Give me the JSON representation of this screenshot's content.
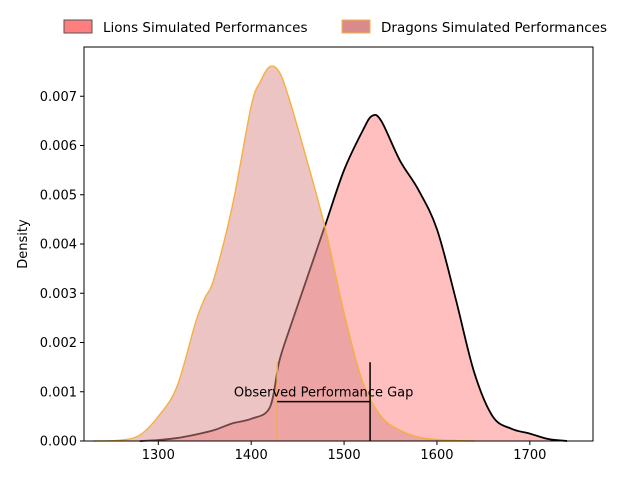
{
  "chart_data": {
    "type": "area",
    "title": "",
    "xlabel": "",
    "ylabel": "Density",
    "xlim": [
      1220,
      1768
    ],
    "ylim": [
      0,
      0.008
    ],
    "xticks": [
      1300,
      1400,
      1500,
      1600,
      1700
    ],
    "yticks": [
      0.0,
      0.001,
      0.002,
      0.003,
      0.004,
      0.005,
      0.006,
      0.007
    ],
    "grid": false,
    "legend_placement": "top-center-outside",
    "series": [
      {
        "name": "Lions Simulated Performances",
        "fill_color": "#ff7f7f",
        "line_color": "#000000",
        "x": [
          1280,
          1300,
          1320,
          1340,
          1360,
          1380,
          1400,
          1420,
          1430,
          1440,
          1460,
          1480,
          1500,
          1520,
          1530,
          1540,
          1560,
          1580,
          1600,
          1620,
          1640,
          1660,
          1680,
          1700,
          1720,
          1740
        ],
        "y": [
          0.0,
          2e-05,
          6e-05,
          0.00013,
          0.00022,
          0.00036,
          0.00045,
          0.00068,
          0.0016,
          0.0022,
          0.0033,
          0.0044,
          0.0055,
          0.0063,
          0.0066,
          0.0065,
          0.0057,
          0.0051,
          0.0043,
          0.0029,
          0.0014,
          0.0005,
          0.00025,
          0.00015,
          4e-05,
          0.0
        ]
      },
      {
        "name": "Dragons Simulated Performances",
        "fill_color": "#d98a8a",
        "line_color": "#f5b041",
        "x": [
          1230,
          1260,
          1280,
          1300,
          1320,
          1340,
          1350,
          1360,
          1380,
          1400,
          1410,
          1420,
          1430,
          1440,
          1460,
          1480,
          1500,
          1520,
          1540,
          1560,
          1580,
          1600,
          1620,
          1640
        ],
        "y": [
          0.0,
          2e-05,
          0.00012,
          0.0005,
          0.0011,
          0.0024,
          0.0029,
          0.0033,
          0.0048,
          0.0068,
          0.0073,
          0.0076,
          0.0075,
          0.007,
          0.0057,
          0.0043,
          0.0026,
          0.0012,
          0.0005,
          0.00022,
          8e-05,
          3e-05,
          1e-05,
          0.0
        ]
      }
    ],
    "annotation": {
      "text": "Observed Performance Gap",
      "x_from": 1428,
      "x_to": 1528,
      "y": 0.0008
    },
    "markers": [
      {
        "x": 1428,
        "y_top": 0.0016,
        "color": "#f5b041"
      },
      {
        "x": 1528,
        "y_top": 0.0016,
        "color": "#000000"
      }
    ]
  }
}
